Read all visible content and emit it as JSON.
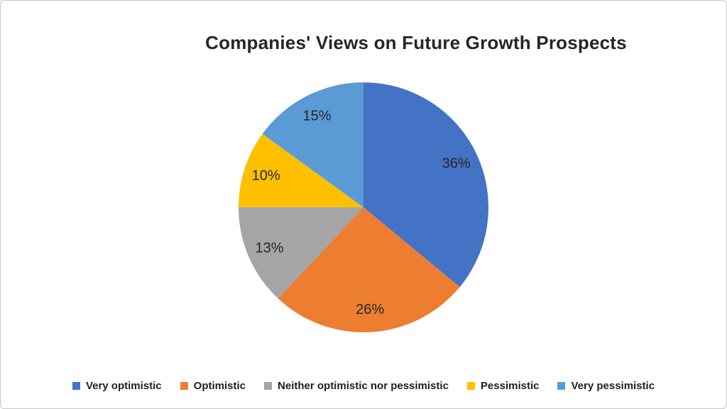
{
  "page": {
    "background_color": "#FFFFFF",
    "frame_border_color": "#C6C6C6"
  },
  "chart_data": {
    "type": "pie",
    "title": "Companies' Views on Future Growth Prospects",
    "title_color": "#262626",
    "direction": "clockwise",
    "start_angle_deg": 0,
    "legend_position": "bottom",
    "data_label_color": "#262626",
    "label_radius_frac": 0.82,
    "segments": [
      {
        "label": "Very optimistic",
        "value": 36,
        "pct_label": "36%",
        "color": "#4472C4"
      },
      {
        "label": "Optimistic",
        "value": 26,
        "pct_label": "26%",
        "color": "#ED7D31"
      },
      {
        "label": "Neither optimistic nor pessimistic",
        "value": 13,
        "pct_label": "13%",
        "color": "#A5A5A5"
      },
      {
        "label": "Pessimistic",
        "value": 10,
        "pct_label": "10%",
        "color": "#FFC000"
      },
      {
        "label": "Very pessimistic",
        "value": 15,
        "pct_label": "15%",
        "color": "#5B9BD5"
      }
    ]
  }
}
